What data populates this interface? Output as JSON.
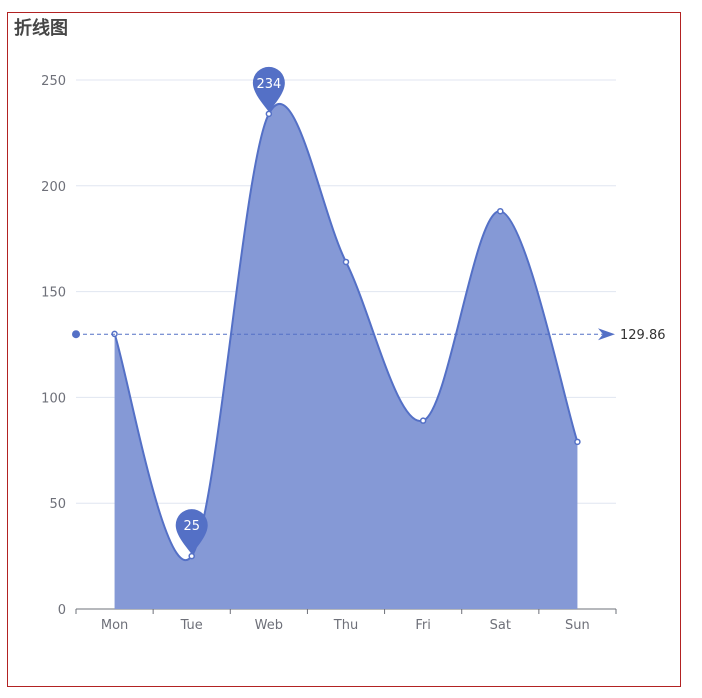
{
  "page": {
    "title": "折线图"
  },
  "chart_data": {
    "type": "area",
    "title": "折线图",
    "categories": [
      "Mon",
      "Tue",
      "Web",
      "Thu",
      "Fri",
      "Sat",
      "Sun"
    ],
    "series": [
      {
        "values": [
          130,
          25,
          234,
          164,
          89,
          188,
          79
        ],
        "smooth": true
      }
    ],
    "ylim": [
      0,
      250
    ],
    "yticks": [
      0,
      50,
      100,
      150,
      200,
      250
    ],
    "grid": true,
    "mark_points": [
      {
        "category": "Web",
        "value": 234,
        "label": "234",
        "kind": "max"
      },
      {
        "category": "Tue",
        "value": 25,
        "label": "25",
        "kind": "min"
      }
    ],
    "mark_line": {
      "value": 129.86,
      "label": "129.86",
      "kind": "average"
    },
    "colors": {
      "line": "#5470c6",
      "area": "#8599d6",
      "grid": "#e0e6f1",
      "axis": "#6e7079",
      "frame": "#b22222"
    }
  }
}
